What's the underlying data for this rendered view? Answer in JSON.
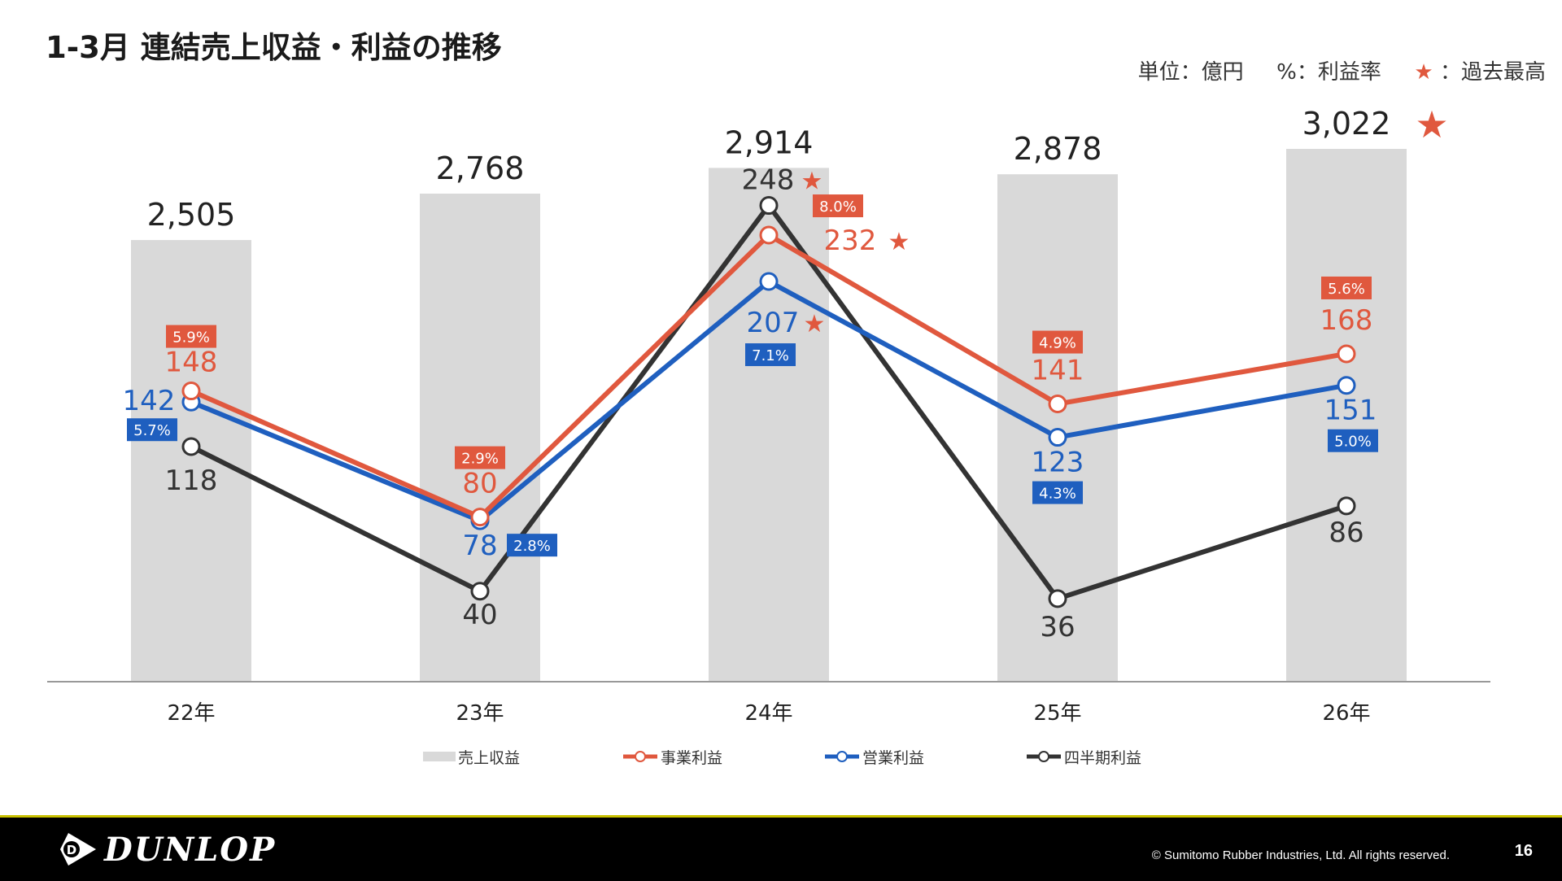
{
  "title": "1-3月 連結売上収益・利益の推移",
  "unit_note": {
    "unit": "単位：億円",
    "pct": "%：利益率",
    "star": "★",
    "star_label": "：過去最高"
  },
  "colors": {
    "bar": "#d9d9d9",
    "jigyo": "#e0583e",
    "eigyo": "#1f5fbf",
    "shihanki": "#333333",
    "star": "#e0583e"
  },
  "chart_data": {
    "type": "bar+line",
    "categories": [
      "22年",
      "23年",
      "24年",
      "25年",
      "26年"
    ],
    "bar_series": {
      "name": "売上収益",
      "values": [
        2505,
        2768,
        2914,
        2878,
        3022
      ],
      "labels": [
        "2,505",
        "2,768",
        "2,914",
        "2,878",
        "3,022"
      ],
      "record": [
        false,
        false,
        false,
        false,
        true
      ]
    },
    "line_series": [
      {
        "key": "jigyo",
        "name": "事業利益",
        "values": [
          148,
          80,
          232,
          141,
          168
        ],
        "margins": [
          "5.9%",
          "2.9%",
          "8.0%",
          "4.9%",
          "5.6%"
        ],
        "record": [
          false,
          false,
          true,
          false,
          false
        ]
      },
      {
        "key": "eigyo",
        "name": "営業利益",
        "values": [
          142,
          78,
          207,
          123,
          151
        ],
        "margins": [
          "5.7%",
          "2.8%",
          "7.1%",
          "4.3%",
          "5.0%"
        ],
        "record": [
          false,
          false,
          true,
          false,
          false
        ]
      },
      {
        "key": "shihanki",
        "name": "四半期利益",
        "values": [
          118,
          40,
          248,
          36,
          86
        ],
        "margins": [],
        "record": [
          false,
          false,
          true,
          false,
          false
        ]
      }
    ]
  },
  "footer": {
    "logo": "DUNLOP",
    "copyright": "© Sumitomo Rubber Industries, Ltd. All rights reserved.",
    "page": "16"
  }
}
